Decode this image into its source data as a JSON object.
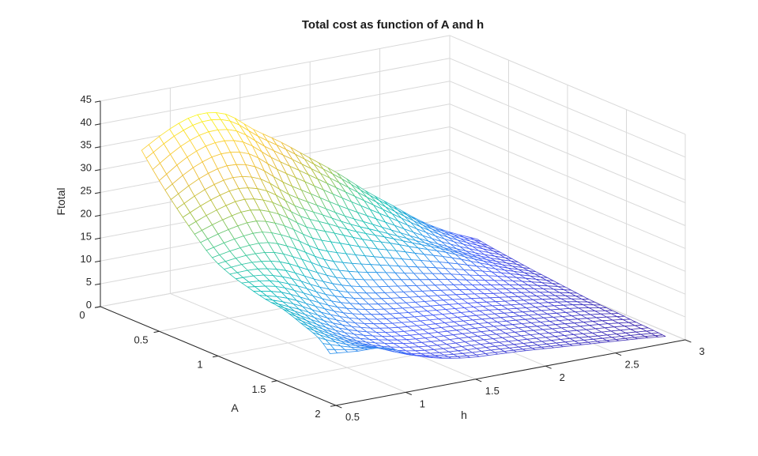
{
  "figure": {
    "title": "Total cost as function of A and h",
    "background": "#ffffff"
  },
  "chart_data": {
    "type": "mesh3d",
    "title": "Total cost as function of A and h",
    "xlabel": "A",
    "ylabel": "h",
    "zlabel": "Ftotal",
    "xlim": [
      0,
      2
    ],
    "ylim": [
      0.5,
      3
    ],
    "zlim": [
      0,
      45
    ],
    "x_ticks": [
      0,
      0.5,
      1,
      1.5,
      2
    ],
    "y_ticks": [
      0.5,
      1,
      1.5,
      2,
      2.5,
      3
    ],
    "z_ticks": [
      0,
      5,
      10,
      15,
      20,
      25,
      30,
      35,
      40,
      45
    ],
    "grid": true,
    "view": {
      "azimuth": -37.5,
      "elevation": 30
    },
    "colormap": "parula",
    "colormap_stops": [
      "#3e26a8",
      "#475bf9",
      "#2796eb",
      "#12beb9",
      "#4acb8e",
      "#aabf39",
      "#eaba33",
      "#fccf30",
      "#f9fb15"
    ],
    "surface": {
      "A": [
        0.35,
        0.5,
        0.65,
        0.8,
        0.95,
        1.1,
        1.25,
        1.4,
        1.55,
        1.7,
        1.85,
        1.95
      ],
      "h": [
        0.5,
        0.7,
        0.9,
        1.1,
        1.3,
        1.5,
        1.7,
        1.9,
        2.1,
        2.3,
        2.5,
        2.7,
        2.9
      ],
      "F": [
        [
          38.0,
          41.5,
          43.5,
          42.5,
          38.0,
          34.0,
          29.5,
          25.0,
          20.0,
          15.5,
          11.0,
          7.5,
          4.8
        ],
        [
          33.0,
          37.0,
          39.0,
          38.0,
          33.5,
          29.5,
          25.5,
          21.5,
          17.5,
          13.5,
          9.8,
          6.8,
          4.2
        ],
        [
          28.5,
          31.5,
          33.0,
          31.5,
          27.0,
          23.5,
          20.0,
          17.0,
          14.0,
          11.0,
          8.2,
          5.8,
          3.7
        ],
        [
          24.5,
          26.5,
          27.5,
          25.5,
          21.5,
          19.0,
          16.5,
          14.5,
          12.3,
          10.2,
          7.6,
          5.2,
          3.2
        ],
        [
          21.0,
          22.0,
          22.0,
          19.5,
          16.0,
          14.0,
          12.5,
          11.0,
          9.6,
          8.0,
          6.4,
          4.6,
          2.8
        ],
        [
          19.0,
          19.0,
          17.5,
          14.5,
          12.0,
          10.5,
          9.5,
          8.5,
          7.5,
          6.3,
          5.2,
          3.9,
          2.4
        ],
        [
          17.8,
          16.8,
          14.2,
          11.3,
          9.5,
          8.4,
          7.6,
          6.9,
          6.1,
          5.2,
          4.3,
          3.3,
          2.0
        ],
        [
          16.8,
          14.6,
          11.6,
          9.2,
          7.8,
          7.0,
          6.4,
          5.8,
          5.2,
          4.4,
          3.7,
          2.9,
          1.7
        ],
        [
          16.2,
          12.8,
          9.8,
          7.8,
          6.6,
          6.0,
          5.5,
          5.0,
          4.4,
          3.8,
          3.1,
          2.4,
          1.5
        ],
        [
          14.8,
          11.4,
          8.6,
          6.9,
          5.8,
          5.2,
          4.8,
          4.3,
          3.8,
          3.2,
          2.6,
          2.0,
          1.2
        ],
        [
          13.2,
          10.6,
          8.8,
          6.4,
          5.2,
          4.6,
          4.2,
          3.7,
          3.2,
          2.7,
          2.1,
          1.6,
          1.0
        ],
        [
          10.8,
          10.2,
          9.8,
          7.0,
          5.2,
          4.2,
          3.8,
          3.4,
          2.9,
          2.4,
          1.9,
          1.4,
          0.8
        ]
      ]
    },
    "colors": {
      "axis": "#262626",
      "grid": "#d9d9d9",
      "tick_label": "#262626",
      "title": "#1a1a1a",
      "mesh_face": "#ffffff",
      "background": "#ffffff"
    }
  }
}
